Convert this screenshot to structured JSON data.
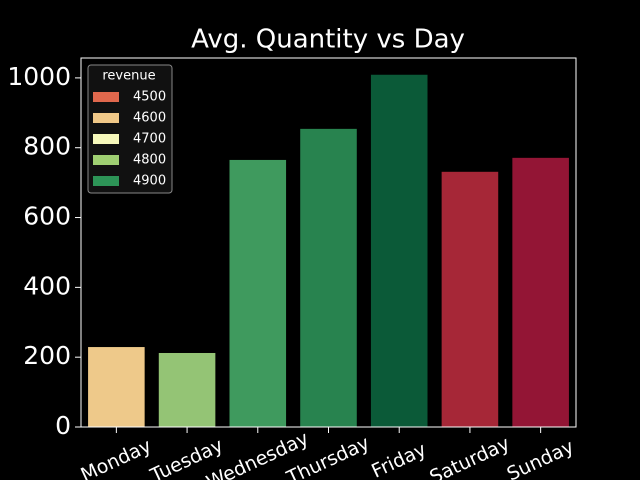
{
  "chart_data": {
    "type": "bar",
    "title": "Avg. Quantity vs Day",
    "categories": [
      "Monday",
      "Tuesday",
      "Wednesday",
      "Thursday",
      "Friday",
      "Saturday",
      "Sunday"
    ],
    "values": [
      229,
      212,
      765,
      854,
      1009,
      731,
      771
    ],
    "colors": [
      "#eec98a",
      "#94c475",
      "#3f9a5e",
      "#28834f",
      "#0b5a38",
      "#a62737",
      "#931535"
    ],
    "ylim": [
      0,
      1057
    ],
    "yticks": [
      0,
      200,
      400,
      600,
      800,
      1000
    ],
    "legend": {
      "title": "revenue",
      "position": "upper left",
      "entries": [
        {
          "label": 4500,
          "color": "#e0684d"
        },
        {
          "label": 4600,
          "color": "#f0c888"
        },
        {
          "label": 4700,
          "color": "#f6f8bb"
        },
        {
          "label": 4800,
          "color": "#9fcf72"
        },
        {
          "label": 4900,
          "color": "#2d9457"
        }
      ]
    }
  }
}
